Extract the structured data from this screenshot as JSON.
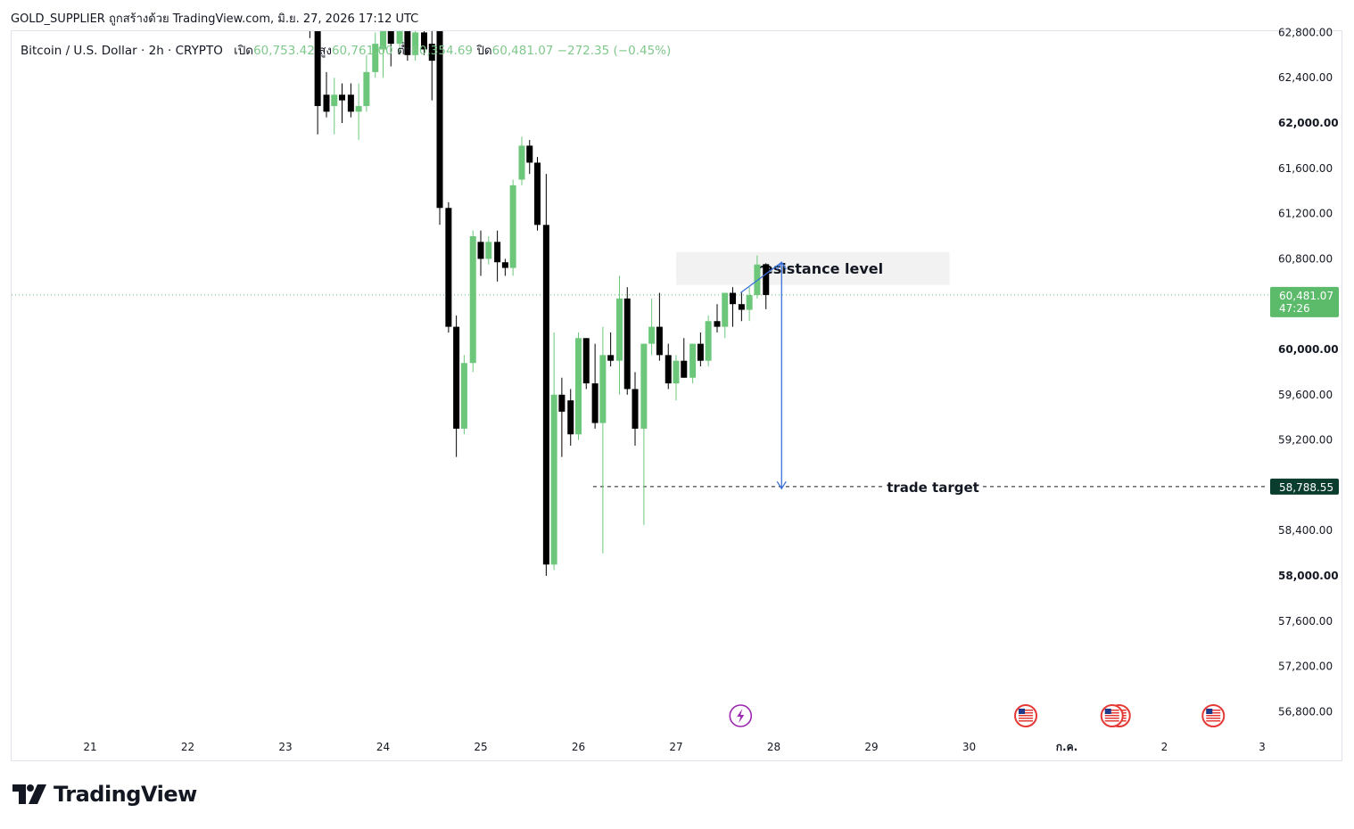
{
  "header": {
    "publish_line": "GOLD_SUPPLIER ถูกสร้างด้วย TradingView.com, มิ.ย. 27, 2026 17:12 UTC"
  },
  "legend": {
    "symbol": "Bitcoin / U.S. Dollar · 2h · CRYPTO",
    "open_label": "เปิด",
    "open_value": "60,753.42",
    "high_label": "สูง",
    "high_value": "60,761.00",
    "low_label": "ต่ำ",
    "low_value": "60,354.69",
    "close_label": "ปิด",
    "close_value": "60,481.07",
    "change": "−272.35 (−0.45%)"
  },
  "price_badge": {
    "price": "60,481.07",
    "countdown": "47:26"
  },
  "target_badge": {
    "price": "58,788.55"
  },
  "annotations": {
    "resistance_label": "resistance level",
    "target_label": "trade target"
  },
  "colors": {
    "up": "#6cc77a",
    "down": "#000000",
    "badge_green": "#5cba6b",
    "badge_dark": "#0b3d2e",
    "arrow": "#3a6fd8"
  },
  "branding": {
    "logo_text": "TradingView"
  },
  "chart_data": {
    "type": "candlestick",
    "symbol": "BTCUSD",
    "interval": "2h",
    "y_ticks": [
      62800,
      62400,
      62000,
      61600,
      61200,
      60800,
      60400,
      60000,
      59600,
      59200,
      58800,
      58400,
      58000,
      57600,
      57200,
      56800
    ],
    "y_tick_labels": [
      "62,800.00",
      "62,400.00",
      "62,000.00",
      "61,600.00",
      "61,200.00",
      "60,800.00",
      "60,400.00",
      "60,000.00",
      "59,600.00",
      "59,200.00",
      "58,800.00",
      "58,400.00",
      "58,000.00",
      "57,600.00",
      "57,200.00",
      "56,800.00"
    ],
    "bold_ticks": [
      62000,
      60000,
      58000
    ],
    "x_ticks": [
      {
        "label": "21",
        "day": 21
      },
      {
        "label": "22",
        "day": 22
      },
      {
        "label": "23",
        "day": 23
      },
      {
        "label": "24",
        "day": 24
      },
      {
        "label": "25",
        "day": 25
      },
      {
        "label": "26",
        "day": 26
      },
      {
        "label": "27",
        "day": 27
      },
      {
        "label": "28",
        "day": 28
      },
      {
        "label": "29",
        "day": 29
      },
      {
        "label": "30",
        "day": 30
      },
      {
        "label": "ก.ค.",
        "day": 31
      },
      {
        "label": "2",
        "day": 32
      },
      {
        "label": "3",
        "day": 33
      }
    ],
    "ylim": [
      56700,
      62860
    ],
    "last_price": 60481.07,
    "target_price": 58788.55,
    "resistance_zone": {
      "from_day": 27.0,
      "to_day": 29.8,
      "low": 60570,
      "high": 60860
    },
    "projection": {
      "start": {
        "day": 27.66,
        "price": 60500
      },
      "peak": {
        "day": 28.08,
        "price": 60770
      },
      "end": {
        "day": 28.08,
        "price": 58770
      }
    },
    "target_line_from_day": 26.15,
    "event_icons": [
      {
        "day": 27.66,
        "kind": "lightning"
      },
      {
        "day": 30.58,
        "kind": "us-flag"
      },
      {
        "day": 31.5,
        "kind": "us-flag-double"
      },
      {
        "day": 32.5,
        "kind": "us-flag"
      }
    ],
    "candles": [
      {
        "d": 23.25,
        "o": 62950,
        "h": 63050,
        "l": 62750,
        "c": 62850
      },
      {
        "d": 23.33,
        "o": 62850,
        "h": 62900,
        "l": 61900,
        "c": 62150
      },
      {
        "d": 23.42,
        "o": 62250,
        "h": 62450,
        "l": 62050,
        "c": 62100
      },
      {
        "d": 23.5,
        "o": 62150,
        "h": 62400,
        "l": 61900,
        "c": 62250
      },
      {
        "d": 23.58,
        "o": 62250,
        "h": 62350,
        "l": 62000,
        "c": 62200
      },
      {
        "d": 23.67,
        "o": 62250,
        "h": 62350,
        "l": 62050,
        "c": 62100
      },
      {
        "d": 23.75,
        "o": 62100,
        "h": 62350,
        "l": 61850,
        "c": 62150
      },
      {
        "d": 23.83,
        "o": 62150,
        "h": 62600,
        "l": 62100,
        "c": 62450
      },
      {
        "d": 23.92,
        "o": 62450,
        "h": 62800,
        "l": 62400,
        "c": 62700
      },
      {
        "d": 24.0,
        "o": 62650,
        "h": 62950,
        "l": 62400,
        "c": 62900
      },
      {
        "d": 24.08,
        "o": 62900,
        "h": 63000,
        "l": 62500,
        "c": 62700
      },
      {
        "d": 24.17,
        "o": 62700,
        "h": 62950,
        "l": 62600,
        "c": 62850
      },
      {
        "d": 24.25,
        "o": 62850,
        "h": 62950,
        "l": 62550,
        "c": 62600
      },
      {
        "d": 24.33,
        "o": 62600,
        "h": 62900,
        "l": 62550,
        "c": 62800
      },
      {
        "d": 24.42,
        "o": 62800,
        "h": 62950,
        "l": 62600,
        "c": 62650
      },
      {
        "d": 24.5,
        "o": 62700,
        "h": 62900,
        "l": 62200,
        "c": 62550
      },
      {
        "d": 24.58,
        "o": 62850,
        "h": 62950,
        "l": 61100,
        "c": 61250
      },
      {
        "d": 24.67,
        "o": 61250,
        "h": 61300,
        "l": 60150,
        "c": 60200
      },
      {
        "d": 24.75,
        "o": 60200,
        "h": 60300,
        "l": 59050,
        "c": 59300
      },
      {
        "d": 24.83,
        "o": 59300,
        "h": 59950,
        "l": 59250,
        "c": 59880
      },
      {
        "d": 24.92,
        "o": 59880,
        "h": 61050,
        "l": 59800,
        "c": 61000
      },
      {
        "d": 25.0,
        "o": 60950,
        "h": 61050,
        "l": 60650,
        "c": 60800
      },
      {
        "d": 25.08,
        "o": 60800,
        "h": 61000,
        "l": 60750,
        "c": 60950
      },
      {
        "d": 25.17,
        "o": 60950,
        "h": 61050,
        "l": 60600,
        "c": 60770
      },
      {
        "d": 25.25,
        "o": 60770,
        "h": 60800,
        "l": 60650,
        "c": 60720
      },
      {
        "d": 25.33,
        "o": 60720,
        "h": 61500,
        "l": 60650,
        "c": 61450
      },
      {
        "d": 25.42,
        "o": 61500,
        "h": 61880,
        "l": 61450,
        "c": 61800
      },
      {
        "d": 25.5,
        "o": 61800,
        "h": 61850,
        "l": 61550,
        "c": 61650
      },
      {
        "d": 25.58,
        "o": 61650,
        "h": 61700,
        "l": 61050,
        "c": 61100
      },
      {
        "d": 25.67,
        "o": 61100,
        "h": 61550,
        "l": 58000,
        "c": 58100
      },
      {
        "d": 25.75,
        "o": 58100,
        "h": 60150,
        "l": 58050,
        "c": 59600
      },
      {
        "d": 25.83,
        "o": 59600,
        "h": 59750,
        "l": 59050,
        "c": 59450
      },
      {
        "d": 25.92,
        "o": 59550,
        "h": 59650,
        "l": 59150,
        "c": 59250
      },
      {
        "d": 26.0,
        "o": 59250,
        "h": 60150,
        "l": 59200,
        "c": 60100
      },
      {
        "d": 26.08,
        "o": 60100,
        "h": 60100,
        "l": 59650,
        "c": 59700
      },
      {
        "d": 26.17,
        "o": 59700,
        "h": 60050,
        "l": 59300,
        "c": 59350
      },
      {
        "d": 26.25,
        "o": 59350,
        "h": 60200,
        "l": 58200,
        "c": 59950
      },
      {
        "d": 26.33,
        "o": 59950,
        "h": 60150,
        "l": 59850,
        "c": 59900
      },
      {
        "d": 26.42,
        "o": 59900,
        "h": 60650,
        "l": 59600,
        "c": 60450
      },
      {
        "d": 26.5,
        "o": 60450,
        "h": 60550,
        "l": 59600,
        "c": 59650
      },
      {
        "d": 26.58,
        "o": 59650,
        "h": 59800,
        "l": 59150,
        "c": 59300
      },
      {
        "d": 26.67,
        "o": 59300,
        "h": 60050,
        "l": 58450,
        "c": 60050
      },
      {
        "d": 26.75,
        "o": 60050,
        "h": 60450,
        "l": 59950,
        "c": 60200
      },
      {
        "d": 26.83,
        "o": 60200,
        "h": 60500,
        "l": 59900,
        "c": 59950
      },
      {
        "d": 26.92,
        "o": 59950,
        "h": 60050,
        "l": 59650,
        "c": 59700
      },
      {
        "d": 27.0,
        "o": 59700,
        "h": 59950,
        "l": 59550,
        "c": 59900
      },
      {
        "d": 27.08,
        "o": 59900,
        "h": 60100,
        "l": 59750,
        "c": 59750
      },
      {
        "d": 27.17,
        "o": 59750,
        "h": 60050,
        "l": 59700,
        "c": 60050
      },
      {
        "d": 27.25,
        "o": 60050,
        "h": 60150,
        "l": 59850,
        "c": 59900
      },
      {
        "d": 27.33,
        "o": 59900,
        "h": 60300,
        "l": 59850,
        "c": 60250
      },
      {
        "d": 27.42,
        "o": 60250,
        "h": 60400,
        "l": 60150,
        "c": 60200
      },
      {
        "d": 27.5,
        "o": 60200,
        "h": 60500,
        "l": 60100,
        "c": 60500
      },
      {
        "d": 27.58,
        "o": 60500,
        "h": 60550,
        "l": 60200,
        "c": 60400
      },
      {
        "d": 27.67,
        "o": 60400,
        "h": 60500,
        "l": 60250,
        "c": 60350
      },
      {
        "d": 27.75,
        "o": 60350,
        "h": 60550,
        "l": 60250,
        "c": 60480
      },
      {
        "d": 27.83,
        "o": 60480,
        "h": 60830,
        "l": 60450,
        "c": 60750
      },
      {
        "d": 27.92,
        "o": 60753,
        "h": 60761,
        "l": 60355,
        "c": 60481
      }
    ]
  }
}
